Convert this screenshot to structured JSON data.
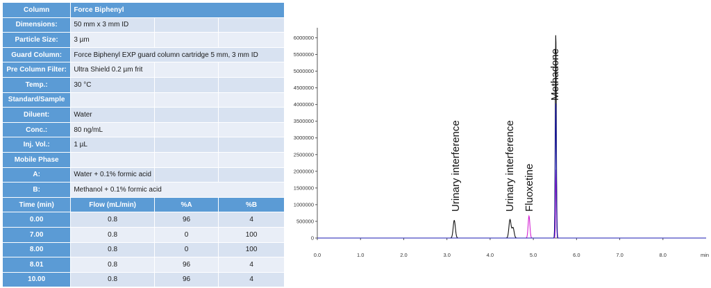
{
  "method": {
    "rows": [
      {
        "label": "Column",
        "value": "Force Biphenyl",
        "header": true
      },
      {
        "label": "Dimensions:",
        "value": "50 mm x 3 mm ID"
      },
      {
        "label": "Particle Size:",
        "value": "3 µm"
      },
      {
        "label": "Guard Column:",
        "value": "Force Biphenyl EXP guard column cartridge 5 mm, 3 mm ID"
      },
      {
        "label": "Pre Column Filter:",
        "value": "Ultra Shield 0.2 µm frit"
      },
      {
        "label": "Temp.:",
        "value": "30 °C"
      },
      {
        "label": "Standard/Sample",
        "value": ""
      },
      {
        "label": "Diluent:",
        "value": "Water"
      },
      {
        "label": "Conc.:",
        "value": "80 ng/mL"
      },
      {
        "label": "Inj. Vol.:",
        "value": "1 µL"
      },
      {
        "label": "Mobile Phase",
        "value": ""
      },
      {
        "label": "A:",
        "value": "Water + 0.1% formic acid"
      },
      {
        "label": "B:",
        "value": "Methanol + 0.1% formic acid"
      }
    ],
    "gradient": {
      "columns": [
        "Time (min)",
        "Flow (mL/min)",
        "%A",
        "%B"
      ],
      "rows": [
        [
          "0.00",
          "0.8",
          "96",
          "4"
        ],
        [
          "7.00",
          "0.8",
          "0",
          "100"
        ],
        [
          "8.00",
          "0.8",
          "0",
          "100"
        ],
        [
          "8.01",
          "0.8",
          "96",
          "4"
        ],
        [
          "10.00",
          "0.8",
          "96",
          "4"
        ]
      ]
    }
  },
  "chart_data": {
    "type": "line",
    "xlabel": "min",
    "ylabel": "",
    "xlim": [
      0,
      9.0
    ],
    "ylim": [
      0,
      6300000
    ],
    "xticks": [
      "0.0",
      "1.0",
      "2.0",
      "3.0",
      "4.0",
      "5.0",
      "6.0",
      "7.0",
      "8.0",
      "min"
    ],
    "yticks": [
      "0",
      "500000",
      "1000000",
      "1500000",
      "2000000",
      "2500000",
      "3000000",
      "3500000",
      "4000000",
      "4500000",
      "5000000",
      "5500000",
      "6000000"
    ],
    "grid": false,
    "colors": {
      "trace1": "#111111",
      "trace2": "#1a1ab0",
      "trace3": "#d21fd2"
    },
    "series": [
      {
        "peaks": [
          {
            "rt": 3.17,
            "height": 530000,
            "width": 0.025
          },
          {
            "rt": 4.46,
            "height": 550000,
            "width": 0.025
          },
          {
            "rt": 4.53,
            "height": 310000,
            "width": 0.025
          },
          {
            "rt": 5.52,
            "height": 6150000,
            "width": 0.012
          }
        ]
      },
      {
        "peaks": [
          {
            "rt": 5.52,
            "height": 4080000,
            "width": 0.012
          }
        ]
      },
      {
        "peaks": [
          {
            "rt": 4.9,
            "height": 660000,
            "width": 0.02
          },
          {
            "rt": 5.53,
            "height": 2050000,
            "width": 0.012
          }
        ]
      }
    ],
    "annotations": [
      {
        "text": "Urinary interference",
        "x": 3.2
      },
      {
        "text": "Urinary interference",
        "x": 4.45
      },
      {
        "text": "Fluoxetine",
        "x": 4.9
      },
      {
        "text": "Methadone",
        "x": 5.5
      }
    ]
  }
}
